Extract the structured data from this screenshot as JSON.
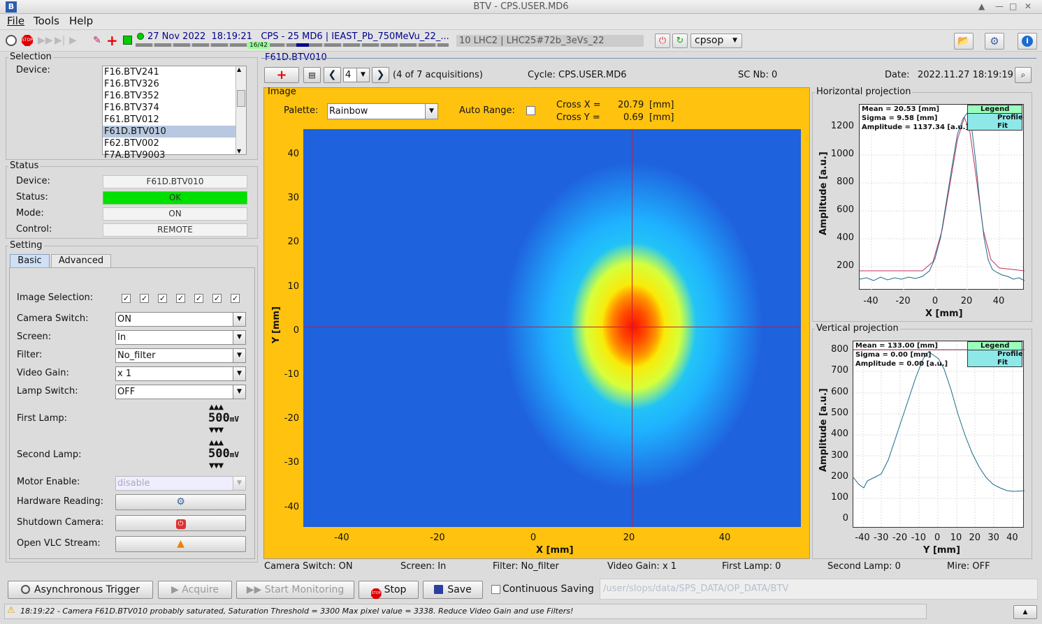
{
  "window": {
    "title": "BTV - CPS.USER.MD6"
  },
  "menu": [
    "File",
    "Tools",
    "Help"
  ],
  "toolbar": {
    "date": "27 Nov 2022",
    "time": "18:19:21",
    "cycle": "CPS - 25 MD6",
    "user": "IEAST_Pb_750MeVu_22_...",
    "counter": "16/42",
    "lhc": "10 LHC2 | LHC25#72b_3eVs_22",
    "console": "cpsop"
  },
  "selection": {
    "title": "Selection",
    "device_label": "Device:",
    "devices": [
      "F16.BTV241",
      "F16.BTV326",
      "F16.BTV352",
      "F16.BTV374",
      "F61.BTV012",
      "F61D.BTV010",
      "F62.BTV002",
      "F7A.BTV9003"
    ],
    "selected_index": 5
  },
  "status": {
    "title": "Status",
    "rows": [
      {
        "label": "Device:",
        "value": "F61D.BTV010"
      },
      {
        "label": "Status:",
        "value": "OK"
      },
      {
        "label": "Mode:",
        "value": "ON"
      },
      {
        "label": "Control:",
        "value": "REMOTE"
      }
    ],
    "ok_color": "#00e000"
  },
  "setting": {
    "title": "Setting",
    "tabs": [
      "Basic",
      "Advanced"
    ],
    "image_selection_label": "Image Selection:",
    "rows": [
      {
        "label": "Camera Switch:",
        "value": "ON"
      },
      {
        "label": "Screen:",
        "value": "In"
      },
      {
        "label": "Filter:",
        "value": "No_filter"
      },
      {
        "label": "Video Gain:",
        "value": "x 1"
      },
      {
        "label": "Lamp Switch:",
        "value": "OFF"
      }
    ],
    "first_lamp_label": "First Lamp:",
    "first_lamp": "500",
    "second_lamp_label": "Second Lamp:",
    "second_lamp": "500",
    "lamp_unit": "mV",
    "motor_label": "Motor Enable:",
    "motor_value": "disable",
    "hw_label": "Hardware Reading:",
    "shutdown_label": "Shutdown Camera:",
    "vlc_label": "Open VLC Stream:"
  },
  "viewer": {
    "device_title": "F61D.BTV010",
    "acq_index": "4",
    "acq_text": "(4 of 7 acquisitions)",
    "cycle": "Cycle: CPS.USER.MD6",
    "sc": "SC Nb: 0",
    "date_label": "Date:",
    "date": "2022.11.27 18:19:19"
  },
  "image": {
    "title": "Image",
    "palette_label": "Palette:",
    "palette": "Rainbow",
    "auto_range": "Auto Range:",
    "cross_x_label": "Cross X =",
    "cross_x": "20.79",
    "cross_y_label": "Cross Y =",
    "cross_y": "0.69",
    "unit": "[mm]",
    "xlabel": "X [mm]",
    "ylabel": "Y [mm]",
    "xticks": [
      "-40",
      "-20",
      "0",
      "20",
      "40"
    ],
    "yticks": [
      "40",
      "30",
      "20",
      "10",
      "0",
      "-10",
      "-20",
      "-30",
      "-40"
    ]
  },
  "hproj": {
    "title": "Horizontal projection",
    "mean": "Mean = 20.53 [mm]",
    "sigma": "Sigma = 9.58 [mm]",
    "amp": "Amplitude = 1137.34 [a.u.]",
    "legend": "Legend",
    "profile": "Profile",
    "fit": "Fit",
    "ylabel": "Amplitude [a.u.]",
    "xlabel": "X [mm]",
    "yticks": [
      "1200",
      "1000",
      "800",
      "600",
      "400",
      "200"
    ],
    "xticks": [
      "-40",
      "-20",
      "0",
      "20",
      "40"
    ]
  },
  "vproj": {
    "title": "Vertical projection",
    "mean": "Mean = 133.00 [mm]",
    "sigma": "Sigma = 0.00 [mm]",
    "amp": "Amplitude = 0.00 [a.u.]",
    "legend": "Legend",
    "profile": "Profile",
    "fit": "Fit",
    "ylabel": "Amplitude [a.u.]",
    "xlabel": "Y [mm]",
    "yticks": [
      "800",
      "700",
      "600",
      "500",
      "400",
      "300",
      "200",
      "100",
      "0"
    ],
    "xticks": [
      "-40",
      "-30",
      "-20",
      "-10",
      "0",
      "10",
      "20",
      "30",
      "40"
    ]
  },
  "infobar": [
    "Camera Switch: ON",
    "Screen: In",
    "Filter: No_filter",
    "Video Gain: x 1",
    "First Lamp: 0",
    "Second Lamp: 0",
    "Mire: OFF"
  ],
  "bottom": {
    "async": "Asynchronous Trigger",
    "acquire": "Acquire",
    "monitor": "Start Monitoring",
    "stop": "Stop",
    "save": "Save",
    "cont": "Continuous Saving",
    "path": "/user/slops/data/SPS_DATA/OP_DATA/BTV"
  },
  "message": "18:19:22 - Camera F61D.BTV010 probably saturated, Saturation Threshold = 3300 Max pixel value = 3338. Reduce Video Gain and use Filters!"
}
